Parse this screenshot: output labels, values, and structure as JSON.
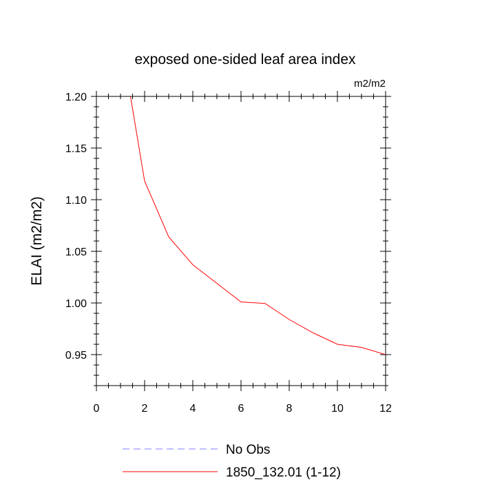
{
  "chart_data": {
    "type": "line",
    "title": "exposed one-sided leaf area index",
    "units": "m2/m2",
    "xlabel": "",
    "ylabel": "ELAI  (m2/m2)",
    "xlim": [
      0,
      12
    ],
    "ylim": [
      0.92,
      1.2
    ],
    "xticks": [
      0,
      2,
      4,
      6,
      8,
      10,
      12
    ],
    "xtick_labels": [
      "0",
      "2",
      "4",
      "6",
      "8",
      "10",
      "12"
    ],
    "yticks": [
      0.95,
      1.0,
      1.05,
      1.1,
      1.15,
      1.2
    ],
    "ytick_labels": [
      "0.95",
      "1.00",
      "1.05",
      "1.10",
      "1.15",
      "1.20"
    ],
    "grid": false,
    "legend_position": "bottom",
    "series": [
      {
        "name": "No Obs",
        "color": "#8080ff",
        "dash": "dashed",
        "x": [],
        "y": []
      },
      {
        "name": "1850_132.01 (1-12)",
        "color": "#ff0000",
        "dash": "solid",
        "x": [
          1,
          2,
          3,
          4,
          5,
          6,
          7,
          8,
          9,
          10,
          11,
          12
        ],
        "y": [
          1.258,
          1.118,
          1.064,
          1.037,
          1.019,
          1.001,
          0.9995,
          0.984,
          0.971,
          0.96,
          0.957,
          0.95
        ]
      }
    ]
  }
}
